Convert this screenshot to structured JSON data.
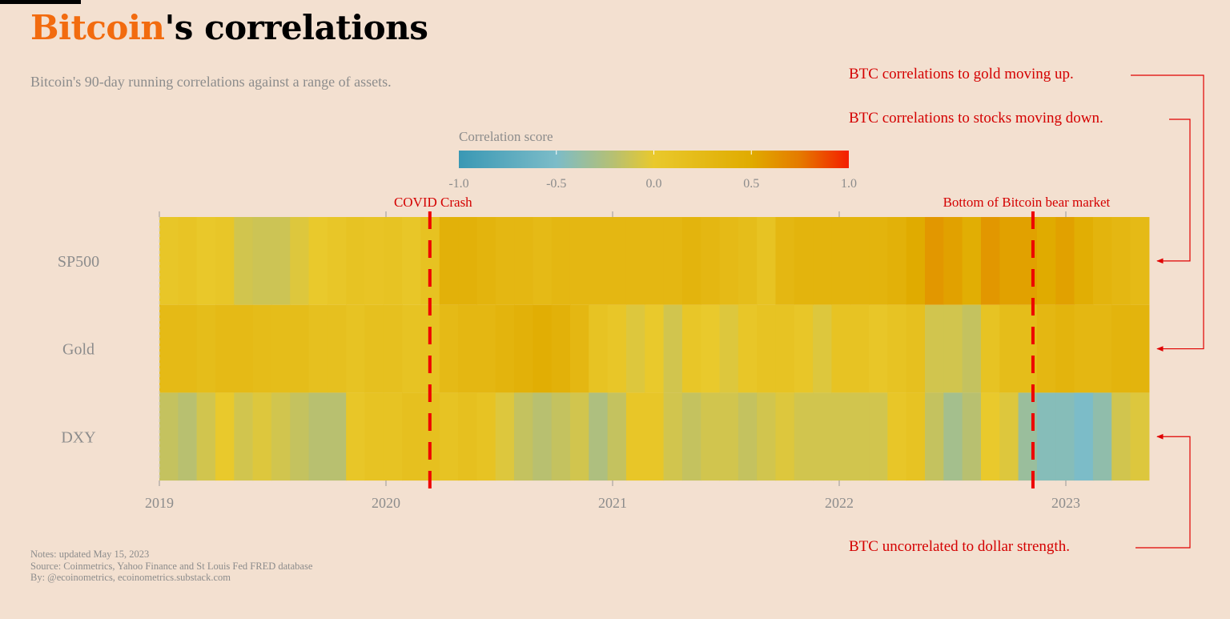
{
  "header": {
    "title_highlight": "Bitcoin",
    "title_rest": "'s correlations",
    "subtitle": "Bitcoin's 90-day running correlations against a range of assets."
  },
  "footer": {
    "notes": "Notes: updated May 15, 2023",
    "source": "Source: Coinmetrics, Yahoo Finance and St Louis Fed FRED database",
    "by": "By: @ecoinometrics, ecoinometrics.substack.com"
  },
  "colors": {
    "accent": "#f26b0f",
    "annotation": "#e00000",
    "background": "#f3e0d0"
  },
  "chart_data": {
    "type": "heatmap",
    "title": "",
    "xlabel": "",
    "ylabel": "",
    "x_start": "2019-01",
    "x_end": "2023-05-15",
    "x_resolution": "monthly (approximate readings)",
    "x_ticks": [
      "2019",
      "2020",
      "2021",
      "2022",
      "2023"
    ],
    "rows": [
      "SP500",
      "Gold",
      "DXY"
    ],
    "colorbar": {
      "title": "Correlation score",
      "range": [
        -1.0,
        1.0
      ],
      "ticks": [
        "-1.0",
        "-0.5",
        "0.0",
        "0.5",
        "1.0"
      ],
      "stops": [
        {
          "value": -1.0,
          "color": "#3a98b4"
        },
        {
          "value": -0.5,
          "color": "#7cbcc8"
        },
        {
          "value": -0.2,
          "color": "#b8c070"
        },
        {
          "value": 0.0,
          "color": "#e9c92c"
        },
        {
          "value": 0.5,
          "color": "#e0ab00"
        },
        {
          "value": 0.75,
          "color": "#e57a00"
        },
        {
          "value": 1.0,
          "color": "#f41e00"
        }
      ]
    },
    "series": [
      {
        "name": "SP500",
        "values": [
          0.05,
          0.08,
          0.02,
          0.05,
          -0.1,
          -0.12,
          -0.12,
          -0.05,
          0.0,
          0.05,
          0.1,
          0.08,
          0.1,
          0.05,
          0.12,
          0.4,
          0.4,
          0.35,
          0.3,
          0.3,
          0.25,
          0.3,
          0.3,
          0.3,
          0.3,
          0.3,
          0.3,
          0.3,
          0.35,
          0.3,
          0.25,
          0.2,
          0.1,
          0.3,
          0.35,
          0.35,
          0.35,
          0.35,
          0.35,
          0.4,
          0.5,
          0.6,
          0.55,
          0.45,
          0.6,
          0.55,
          0.55,
          0.5,
          0.55,
          0.45,
          0.35,
          0.3,
          0.25
        ]
      },
      {
        "name": "Gold",
        "values": [
          0.25,
          0.25,
          0.2,
          0.25,
          0.25,
          0.22,
          0.2,
          0.2,
          0.15,
          0.15,
          0.1,
          0.15,
          0.15,
          0.1,
          0.12,
          0.25,
          0.3,
          0.3,
          0.35,
          0.4,
          0.45,
          0.4,
          0.3,
          0.1,
          0.05,
          -0.05,
          0.0,
          -0.1,
          0.05,
          0.0,
          -0.05,
          0.05,
          0.1,
          0.1,
          0.05,
          -0.05,
          0.1,
          0.1,
          0.05,
          0.1,
          0.15,
          -0.1,
          -0.1,
          -0.15,
          0.1,
          0.2,
          0.2,
          0.3,
          0.35,
          0.3,
          0.3,
          0.35,
          0.35
        ]
      },
      {
        "name": "DXY",
        "values": [
          -0.15,
          -0.2,
          -0.1,
          0.0,
          -0.1,
          -0.05,
          -0.1,
          -0.15,
          -0.2,
          -0.2,
          0.05,
          0.1,
          0.1,
          0.15,
          0.15,
          0.1,
          0.15,
          0.1,
          -0.05,
          -0.15,
          -0.2,
          -0.15,
          -0.1,
          -0.25,
          -0.15,
          0.05,
          0.05,
          -0.1,
          -0.15,
          -0.1,
          -0.1,
          -0.15,
          -0.1,
          -0.05,
          -0.1,
          -0.1,
          -0.1,
          -0.1,
          -0.1,
          0.05,
          0.1,
          -0.15,
          -0.3,
          -0.2,
          0.0,
          -0.05,
          -0.35,
          -0.45,
          -0.45,
          -0.5,
          -0.4,
          -0.1,
          -0.05
        ]
      }
    ],
    "events": [
      {
        "label": "COVID Crash",
        "date": "2020-03-12"
      },
      {
        "label": "Bottom of Bitcoin bear market",
        "date": "2022-11-09"
      }
    ],
    "annotations": [
      {
        "text": "BTC correlations to gold moving up.",
        "target": "Gold"
      },
      {
        "text": "BTC correlations to stocks moving down.",
        "target": "SP500"
      },
      {
        "text": "BTC uncorrelated to dollar strength.",
        "target": "DXY"
      }
    ]
  }
}
